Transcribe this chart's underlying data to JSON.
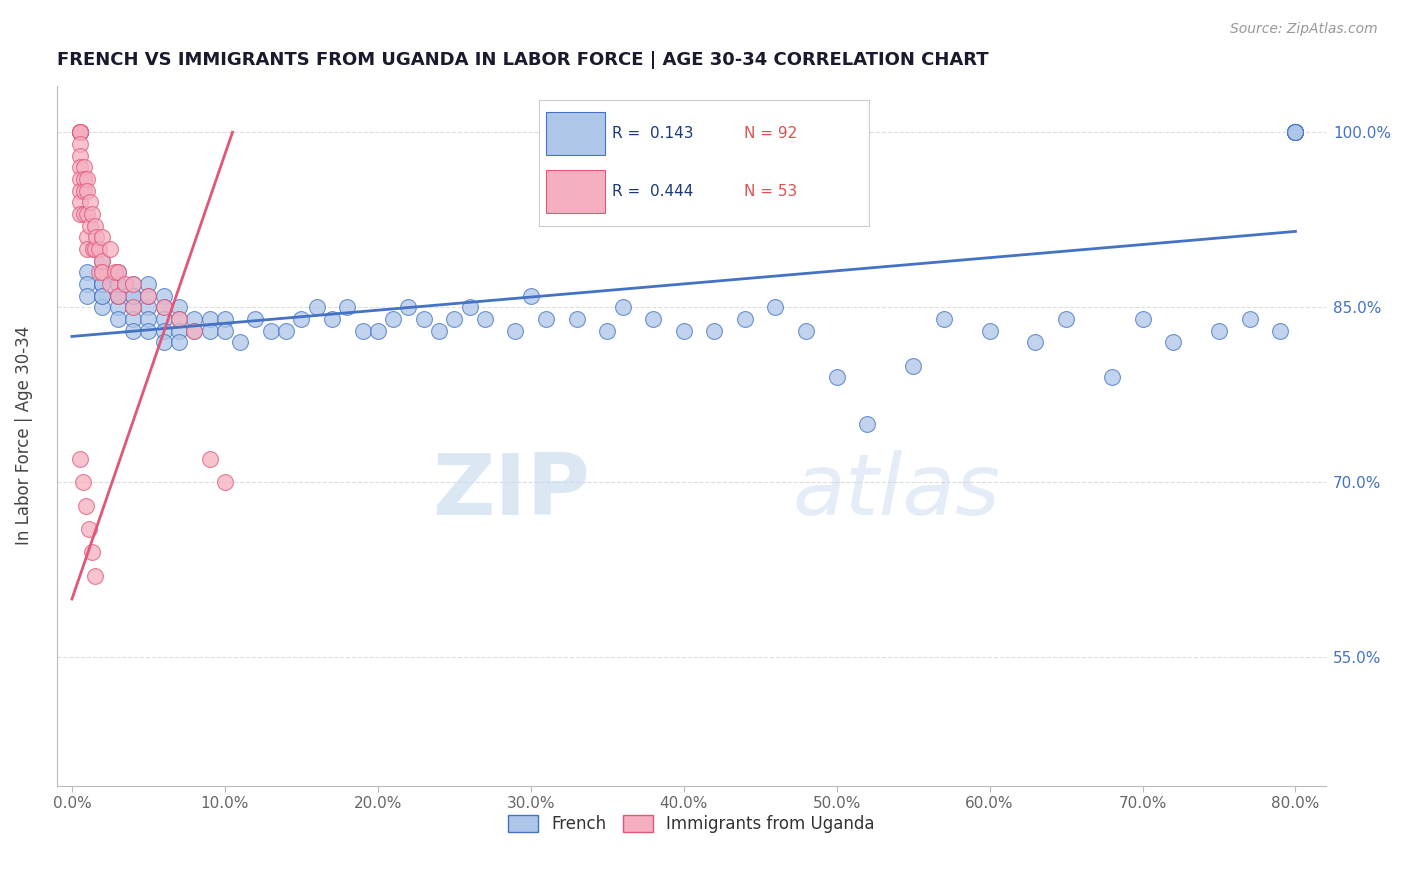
{
  "title": "FRENCH VS IMMIGRANTS FROM UGANDA IN LABOR FORCE | AGE 30-34 CORRELATION CHART",
  "source_text": "Source: ZipAtlas.com",
  "ylabel": "In Labor Force | Age 30-34",
  "xlim": [
    -0.01,
    0.82
  ],
  "ylim": [
    0.44,
    1.04
  ],
  "xticks": [
    0.0,
    0.1,
    0.2,
    0.3,
    0.4,
    0.5,
    0.6,
    0.7,
    0.8
  ],
  "xticklabels": [
    "0.0%",
    "10.0%",
    "20.0%",
    "30.0%",
    "40.0%",
    "50.0%",
    "60.0%",
    "70.0%",
    "80.0%"
  ],
  "yticks": [
    0.55,
    0.7,
    0.85,
    1.0
  ],
  "yticklabels": [
    "55.0%",
    "70.0%",
    "85.0%",
    "100.0%"
  ],
  "blue_R": "0.143",
  "blue_N": "92",
  "pink_R": "0.444",
  "pink_N": "53",
  "blue_color": "#aec6e8",
  "pink_color": "#f5afc0",
  "blue_line_color": "#4472c4",
  "pink_line_color": "#e05878",
  "legend_label_blue": "French",
  "legend_label_pink": "Immigrants from Uganda",
  "watermark_zip": "ZIP",
  "watermark_atlas": "atlas",
  "axis_label_color": "#444444",
  "tick_color": "#666666",
  "grid_color": "#dddddd",
  "blue_scatter_x": [
    0.01,
    0.01,
    0.01,
    0.02,
    0.02,
    0.02,
    0.02,
    0.02,
    0.02,
    0.02,
    0.03,
    0.03,
    0.03,
    0.03,
    0.03,
    0.03,
    0.03,
    0.04,
    0.04,
    0.04,
    0.04,
    0.04,
    0.04,
    0.05,
    0.05,
    0.05,
    0.05,
    0.05,
    0.06,
    0.06,
    0.06,
    0.06,
    0.06,
    0.07,
    0.07,
    0.07,
    0.07,
    0.08,
    0.08,
    0.09,
    0.09,
    0.1,
    0.1,
    0.11,
    0.12,
    0.13,
    0.14,
    0.15,
    0.16,
    0.17,
    0.18,
    0.19,
    0.2,
    0.21,
    0.22,
    0.23,
    0.24,
    0.25,
    0.26,
    0.27,
    0.29,
    0.3,
    0.31,
    0.33,
    0.35,
    0.36,
    0.38,
    0.4,
    0.42,
    0.44,
    0.46,
    0.48,
    0.5,
    0.52,
    0.55,
    0.57,
    0.6,
    0.63,
    0.65,
    0.68,
    0.7,
    0.72,
    0.75,
    0.77,
    0.79,
    0.8,
    0.8,
    0.8,
    0.8,
    0.8,
    0.8,
    0.8
  ],
  "blue_scatter_y": [
    0.88,
    0.87,
    0.86,
    0.89,
    0.88,
    0.87,
    0.86,
    0.85,
    0.87,
    0.86,
    0.88,
    0.87,
    0.86,
    0.85,
    0.84,
    0.86,
    0.87,
    0.86,
    0.85,
    0.84,
    0.83,
    0.87,
    0.86,
    0.87,
    0.85,
    0.84,
    0.83,
    0.86,
    0.86,
    0.85,
    0.84,
    0.83,
    0.82,
    0.85,
    0.84,
    0.83,
    0.82,
    0.84,
    0.83,
    0.84,
    0.83,
    0.84,
    0.83,
    0.82,
    0.84,
    0.83,
    0.83,
    0.84,
    0.85,
    0.84,
    0.85,
    0.83,
    0.83,
    0.84,
    0.85,
    0.84,
    0.83,
    0.84,
    0.85,
    0.84,
    0.83,
    0.86,
    0.84,
    0.84,
    0.83,
    0.85,
    0.84,
    0.83,
    0.83,
    0.84,
    0.85,
    0.83,
    0.79,
    0.75,
    0.8,
    0.84,
    0.83,
    0.82,
    0.84,
    0.79,
    0.84,
    0.82,
    0.83,
    0.84,
    0.83,
    1.0,
    1.0,
    1.0,
    1.0,
    1.0,
    1.0,
    1.0
  ],
  "pink_scatter_x": [
    0.005,
    0.005,
    0.005,
    0.005,
    0.005,
    0.005,
    0.005,
    0.005,
    0.005,
    0.005,
    0.005,
    0.005,
    0.008,
    0.008,
    0.008,
    0.008,
    0.01,
    0.01,
    0.01,
    0.01,
    0.01,
    0.012,
    0.012,
    0.013,
    0.014,
    0.015,
    0.015,
    0.016,
    0.018,
    0.018,
    0.02,
    0.02,
    0.02,
    0.025,
    0.025,
    0.028,
    0.03,
    0.03,
    0.035,
    0.04,
    0.04,
    0.05,
    0.06,
    0.07,
    0.08,
    0.09,
    0.1,
    0.005,
    0.007,
    0.009,
    0.011,
    0.013,
    0.015
  ],
  "pink_scatter_y": [
    1.0,
    1.0,
    1.0,
    1.0,
    1.0,
    0.99,
    0.98,
    0.97,
    0.96,
    0.95,
    0.94,
    0.93,
    0.97,
    0.96,
    0.95,
    0.93,
    0.96,
    0.95,
    0.93,
    0.91,
    0.9,
    0.94,
    0.92,
    0.93,
    0.9,
    0.92,
    0.9,
    0.91,
    0.9,
    0.88,
    0.91,
    0.89,
    0.88,
    0.9,
    0.87,
    0.88,
    0.88,
    0.86,
    0.87,
    0.87,
    0.85,
    0.86,
    0.85,
    0.84,
    0.83,
    0.72,
    0.7,
    0.72,
    0.7,
    0.68,
    0.66,
    0.64,
    0.62
  ],
  "blue_trend_x": [
    0.0,
    0.8
  ],
  "blue_trend_y": [
    0.825,
    0.915
  ],
  "pink_trend_x": [
    0.0,
    0.105
  ],
  "pink_trend_y": [
    0.6,
    1.0
  ]
}
